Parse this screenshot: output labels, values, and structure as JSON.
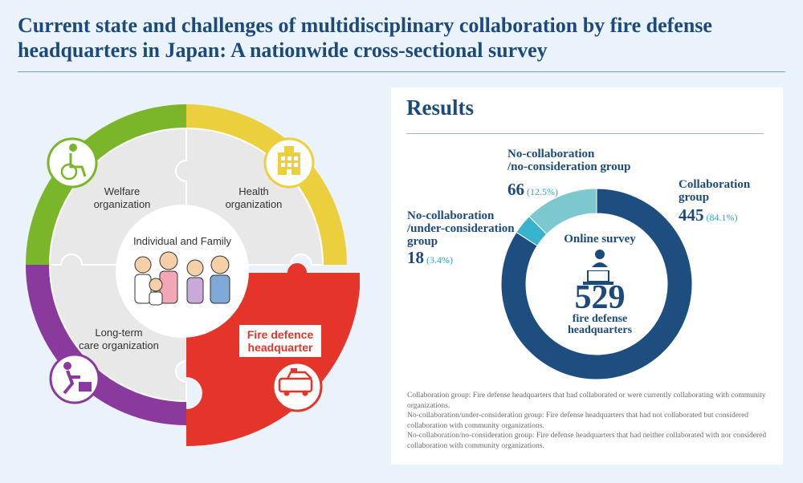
{
  "title": "Current state and challenges of multidisciplinary collaboration by fire defense headquarters in Japan: A nationwide cross-sectional survey",
  "diagram": {
    "welfare_label_1": "Welfare",
    "welfare_label_2": "organization",
    "health_label_1": "Health",
    "health_label_2": "organization",
    "ltc_label_1": "Long-term",
    "ltc_label_2": "care organization",
    "fire_label_1": "Fire defence",
    "fire_label_2": "headquarter",
    "center_label": "Individual and Family",
    "colors": {
      "welfare": "#7ab52a",
      "health": "#eccf3d",
      "ltc": "#8a3a9c",
      "fire": "#e5352b",
      "inner": "#e8e8e8"
    },
    "icons": [
      "wheelchair-icon",
      "hospital-building-icon",
      "caregiver-icon",
      "ambulance-icon",
      "family-illustration"
    ]
  },
  "results": {
    "heading": "Results",
    "collab_name_1": "Collaboration",
    "collab_name_2": "group",
    "collab_count": "445",
    "collab_pct": "(84.1%)",
    "nocon_name_1": "No-collaboration",
    "nocon_name_2": "/no-consideration group",
    "nocon_count": "66",
    "nocon_pct": "(12.5%)",
    "under_name_1": "No-collaboration",
    "under_name_2": "/under-consideration",
    "under_name_3": "group",
    "under_count": "18",
    "under_pct": "(3.4%)",
    "center_label": "Online survey",
    "center_total": "529",
    "center_unit_1": "fire defense",
    "center_unit_2": "headquarters",
    "notes": [
      "Collaboration group: Fire defense headquarters that had collaborated or were currently collaborating with community organizations.",
      "No-collaboration/under-consideration group: Fire defense headquarters that had not collaborated but considered collaboration with community organizations.",
      "No-collaboration/no-consideration group: Fire defense headquarters that had neither collaborated with nor considered collaboration with community organizations."
    ]
  },
  "chart_data": {
    "type": "pie",
    "categories": [
      "Collaboration group",
      "No-collaboration/under-consideration group",
      "No-collaboration/no-consideration group"
    ],
    "values": [
      445,
      18,
      66
    ],
    "percentages": [
      84.1,
      3.4,
      12.5
    ],
    "total": 529,
    "colors": [
      "#1e4d80",
      "#38b3ce",
      "#7cc8ce"
    ]
  }
}
